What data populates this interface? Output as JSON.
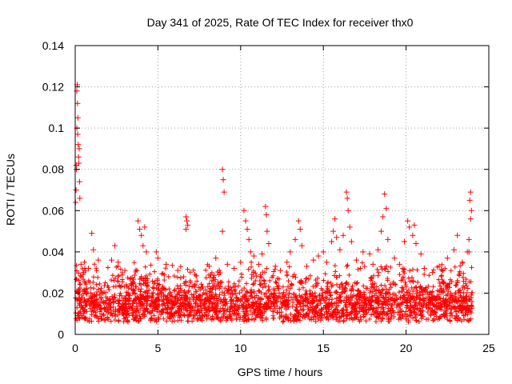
{
  "chart_data": {
    "type": "scatter",
    "title": "Day 341 of 2025, Rate Of TEC Index for receiver thx0",
    "xlabel": "GPS time / hours",
    "ylabel": "ROTI / TECUs",
    "xlim": [
      0,
      25
    ],
    "ylim": [
      0,
      0.14
    ],
    "x_ticks": [
      0,
      5,
      10,
      15,
      20,
      25
    ],
    "y_ticks": [
      0,
      0.02,
      0.04,
      0.06,
      0.08,
      0.1,
      0.12,
      0.14
    ],
    "x_tick_labels": [
      "0",
      "5",
      "10",
      "15",
      "20",
      "25"
    ],
    "y_tick_labels": [
      "0",
      "0.02",
      "0.04",
      "0.06",
      "0.08",
      "0.1",
      "0.12",
      "0.14"
    ],
    "grid": true,
    "marker": "+",
    "color": "#ff0000",
    "series": [
      {
        "name": "ROTI",
        "points": [
          [
            0.02,
            0.064
          ],
          [
            0.05,
            0.07
          ],
          [
            0.07,
            0.08
          ],
          [
            0.1,
            0.1
          ],
          [
            0.1,
            0.118
          ],
          [
            0.12,
            0.121
          ],
          [
            0.14,
            0.112
          ],
          [
            0.16,
            0.105
          ],
          [
            0.18,
            0.092
          ],
          [
            0.2,
            0.086
          ],
          [
            0.22,
            0.083
          ],
          [
            0.24,
            0.09
          ],
          [
            0.26,
            0.074
          ],
          [
            0.28,
            0.066
          ],
          [
            0.06,
            0.082
          ],
          [
            0.15,
            0.097
          ],
          [
            0.35,
            0.034
          ],
          [
            0.5,
            0.03
          ],
          [
            0.8,
            0.032
          ],
          [
            1.0,
            0.049
          ],
          [
            1.1,
            0.041
          ],
          [
            1.4,
            0.036
          ],
          [
            2.2,
            0.036
          ],
          [
            2.4,
            0.043
          ],
          [
            2.6,
            0.035
          ],
          [
            3.0,
            0.031
          ],
          [
            3.8,
            0.055
          ],
          [
            3.9,
            0.051
          ],
          [
            4.0,
            0.048
          ],
          [
            4.1,
            0.043
          ],
          [
            4.2,
            0.052
          ],
          [
            4.3,
            0.04
          ],
          [
            4.9,
            0.04
          ],
          [
            5.0,
            0.037
          ],
          [
            5.5,
            0.034
          ],
          [
            6.2,
            0.031
          ],
          [
            6.7,
            0.057
          ],
          [
            6.75,
            0.055
          ],
          [
            6.8,
            0.053
          ],
          [
            6.7,
            0.051
          ],
          [
            8.1,
            0.033
          ],
          [
            8.5,
            0.037
          ],
          [
            8.9,
            0.08
          ],
          [
            8.95,
            0.075
          ],
          [
            9.0,
            0.069
          ],
          [
            8.9,
            0.05
          ],
          [
            9.2,
            0.034
          ],
          [
            9.6,
            0.032
          ],
          [
            10.0,
            0.035
          ],
          [
            10.2,
            0.06
          ],
          [
            10.3,
            0.055
          ],
          [
            10.4,
            0.051
          ],
          [
            10.5,
            0.046
          ],
          [
            10.6,
            0.04
          ],
          [
            10.8,
            0.038
          ],
          [
            11.1,
            0.034
          ],
          [
            11.3,
            0.039
          ],
          [
            11.5,
            0.062
          ],
          [
            11.55,
            0.058
          ],
          [
            11.6,
            0.05
          ],
          [
            11.7,
            0.044
          ],
          [
            12.1,
            0.033
          ],
          [
            12.4,
            0.031
          ],
          [
            12.8,
            0.035
          ],
          [
            13.0,
            0.04
          ],
          [
            13.3,
            0.046
          ],
          [
            13.5,
            0.055
          ],
          [
            13.6,
            0.051
          ],
          [
            13.7,
            0.043
          ],
          [
            14.0,
            0.033
          ],
          [
            14.4,
            0.036
          ],
          [
            14.7,
            0.038
          ],
          [
            15.0,
            0.04
          ],
          [
            15.2,
            0.035
          ],
          [
            15.5,
            0.045
          ],
          [
            15.6,
            0.05
          ],
          [
            15.7,
            0.056
          ],
          [
            15.8,
            0.047
          ],
          [
            16.0,
            0.041
          ],
          [
            16.2,
            0.048
          ],
          [
            16.4,
            0.069
          ],
          [
            16.45,
            0.066
          ],
          [
            16.5,
            0.06
          ],
          [
            16.6,
            0.052
          ],
          [
            16.7,
            0.045
          ],
          [
            17.0,
            0.036
          ],
          [
            17.4,
            0.04
          ],
          [
            17.8,
            0.039
          ],
          [
            18.0,
            0.034
          ],
          [
            18.3,
            0.041
          ],
          [
            18.5,
            0.05
          ],
          [
            18.6,
            0.057
          ],
          [
            18.7,
            0.068
          ],
          [
            18.8,
            0.061
          ],
          [
            18.9,
            0.046
          ],
          [
            19.3,
            0.037
          ],
          [
            19.6,
            0.034
          ],
          [
            19.9,
            0.045
          ],
          [
            20.1,
            0.055
          ],
          [
            20.2,
            0.052
          ],
          [
            20.4,
            0.048
          ],
          [
            20.5,
            0.053
          ],
          [
            20.6,
            0.044
          ],
          [
            20.9,
            0.039
          ],
          [
            21.1,
            0.032
          ],
          [
            21.6,
            0.03
          ],
          [
            22.0,
            0.033
          ],
          [
            22.5,
            0.037
          ],
          [
            22.9,
            0.041
          ],
          [
            23.1,
            0.048
          ],
          [
            23.4,
            0.035
          ],
          [
            23.7,
            0.04
          ],
          [
            23.8,
            0.046
          ],
          [
            23.85,
            0.065
          ],
          [
            23.9,
            0.069
          ],
          [
            23.95,
            0.06
          ],
          [
            23.9,
            0.056
          ],
          [
            23.8,
            0.04
          ]
        ]
      }
    ]
  }
}
